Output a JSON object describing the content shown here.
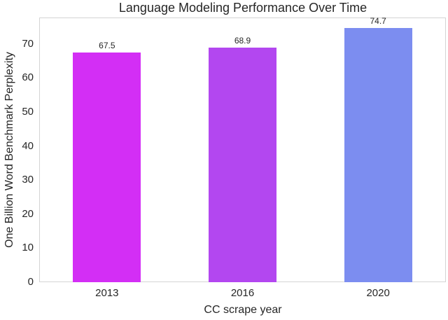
{
  "chart_data": {
    "type": "bar",
    "title": "Language Modeling Performance Over Time",
    "xlabel": "CC scrape year",
    "ylabel": "One Billion Word Benchmark Perplexity",
    "categories": [
      "2013",
      "2016",
      "2020"
    ],
    "values": [
      67.5,
      68.9,
      74.7
    ],
    "bar_labels": [
      "67.5",
      "68.9",
      "74.7"
    ],
    "bar_colors": [
      "#d32ef5",
      "#b347f0",
      "#7c8df0"
    ],
    "yticks": [
      0,
      10,
      20,
      30,
      40,
      50,
      60,
      70
    ],
    "ylim": [
      0,
      77.8
    ],
    "bar_width_fraction": 0.5,
    "grid": false,
    "legend": null,
    "style": {
      "background": "#ffffff",
      "spine_color": "#d4d4d4",
      "text_color": "#262626"
    }
  }
}
